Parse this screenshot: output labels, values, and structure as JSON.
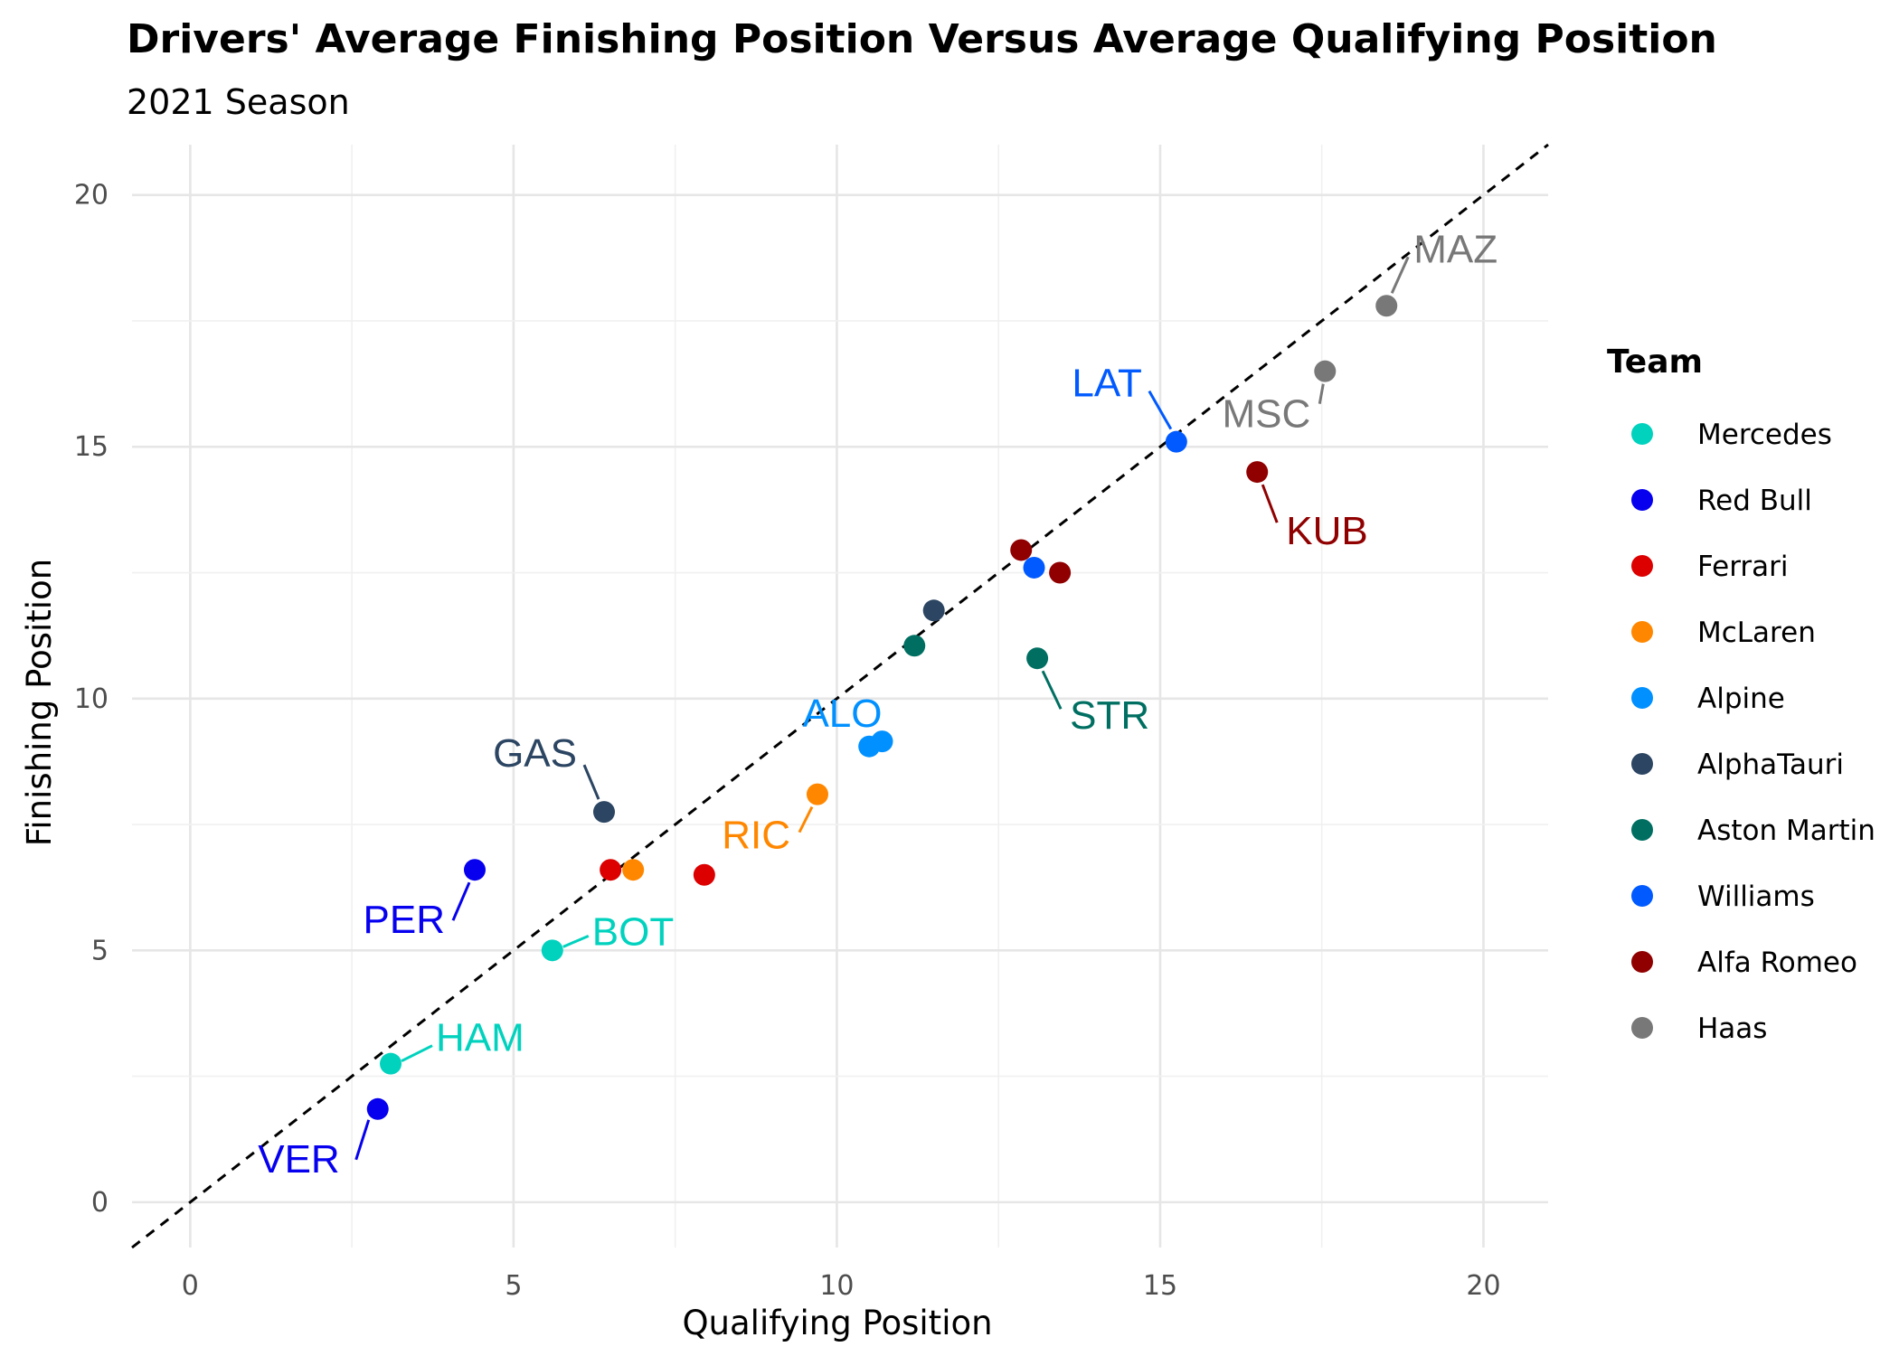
{
  "chart_data": {
    "type": "scatter",
    "title": "Drivers' Average Finishing Position Versus Average Qualifying Position",
    "subtitle": "2021 Season",
    "xlabel": "Qualifying Position",
    "ylabel": "Finishing Position",
    "xlim": [
      -0.9,
      21
    ],
    "ylim": [
      -0.9,
      21
    ],
    "x_ticks": [
      0,
      5,
      10,
      15,
      20
    ],
    "y_ticks": [
      0,
      5,
      10,
      15,
      20
    ],
    "grid": true,
    "reference_line": {
      "style": "dashed",
      "slope": 1,
      "intercept": 0,
      "color": "#000000"
    },
    "legend": {
      "title": "Team",
      "placement": "right",
      "entries": [
        {
          "name": "Mercedes",
          "color": "#00D2BE"
        },
        {
          "name": "Red Bull",
          "color": "#0600EF"
        },
        {
          "name": "Ferrari",
          "color": "#DC0000"
        },
        {
          "name": "McLaren",
          "color": "#FF8700"
        },
        {
          "name": "Alpine",
          "color": "#0090FF"
        },
        {
          "name": "AlphaTauri",
          "color": "#2B4562"
        },
        {
          "name": "Aston Martin",
          "color": "#006F62"
        },
        {
          "name": "Williams",
          "color": "#005AFF"
        },
        {
          "name": "Alfa Romeo",
          "color": "#900000"
        },
        {
          "name": "Haas",
          "color": "#787878"
        }
      ]
    },
    "points": [
      {
        "team": "Red Bull",
        "x": 2.9,
        "y": 1.85,
        "label": "VER"
      },
      {
        "team": "Mercedes",
        "x": 3.1,
        "y": 2.75,
        "label": "HAM"
      },
      {
        "team": "Red Bull",
        "x": 4.4,
        "y": 6.6,
        "label": "PER"
      },
      {
        "team": "Mercedes",
        "x": 5.6,
        "y": 5.0,
        "label": "BOT"
      },
      {
        "team": "AlphaTauri",
        "x": 6.4,
        "y": 7.75,
        "label": "GAS"
      },
      {
        "team": "Ferrari",
        "x": 6.5,
        "y": 6.6,
        "label": ""
      },
      {
        "team": "McLaren",
        "x": 6.85,
        "y": 6.6,
        "label": ""
      },
      {
        "team": "Ferrari",
        "x": 7.95,
        "y": 6.5,
        "label": ""
      },
      {
        "team": "McLaren",
        "x": 9.7,
        "y": 8.1,
        "label": "RIC"
      },
      {
        "team": "Alpine",
        "x": 10.5,
        "y": 9.05,
        "label": ""
      },
      {
        "team": "Alpine",
        "x": 10.7,
        "y": 9.15,
        "label": "ALO"
      },
      {
        "team": "Aston Martin",
        "x": 11.2,
        "y": 11.05,
        "label": ""
      },
      {
        "team": "AlphaTauri",
        "x": 11.5,
        "y": 11.75,
        "label": ""
      },
      {
        "team": "Alfa Romeo",
        "x": 12.85,
        "y": 12.95,
        "label": ""
      },
      {
        "team": "Williams",
        "x": 13.05,
        "y": 12.6,
        "label": ""
      },
      {
        "team": "Aston Martin",
        "x": 13.1,
        "y": 10.8,
        "label": "STR"
      },
      {
        "team": "Alfa Romeo",
        "x": 13.45,
        "y": 12.5,
        "label": ""
      },
      {
        "team": "Williams",
        "x": 15.25,
        "y": 15.1,
        "label": "LAT"
      },
      {
        "team": "Alfa Romeo",
        "x": 16.5,
        "y": 14.5,
        "label": "KUB"
      },
      {
        "team": "Haas",
        "x": 17.55,
        "y": 16.5,
        "label": "MSC"
      },
      {
        "team": "Haas",
        "x": 18.5,
        "y": 17.8,
        "label": "MAZ"
      }
    ]
  }
}
